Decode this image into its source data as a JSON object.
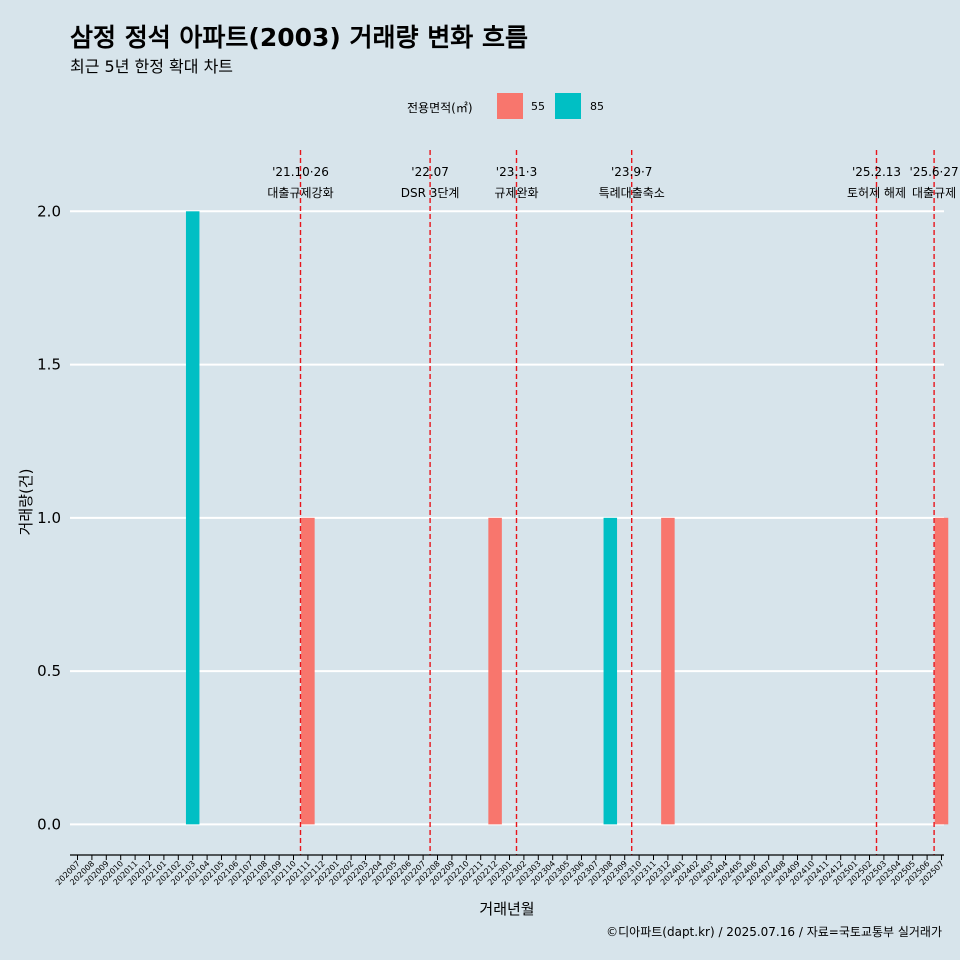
{
  "header": {
    "title": "삼정 정석 아파트(2003) 거래량 변화 흐름",
    "subtitle": "최근 5년 한정 확대 차트"
  },
  "legend": {
    "title": "전용면적(㎡)",
    "items": [
      {
        "label": "55",
        "color": "#f8766d"
      },
      {
        "label": "85",
        "color": "#00bfc4"
      }
    ]
  },
  "caption": "©디아파트(dapt.kr) / 2025.07.16 / 자료=국토교통부 실거래가",
  "chart_data": {
    "type": "bar",
    "title": "삼정 정석 아파트(2003) 거래량 변화 흐름",
    "subtitle": "최근 5년 한정 확대 차트",
    "xlabel": "거래년월",
    "ylabel": "거래량(건)",
    "ylim": [
      -0.1,
      2.2
    ],
    "yticks": [
      0.0,
      0.5,
      1.0,
      1.5,
      2.0
    ],
    "ytick_labels": [
      "0.0",
      "0.5",
      "1.0",
      "1.5",
      "2.0"
    ],
    "grid": "horizontal major lines",
    "legend_position": "top",
    "categories": [
      "202007",
      "202008",
      "202009",
      "202010",
      "202011",
      "202012",
      "202101",
      "202102",
      "202103",
      "202104",
      "202105",
      "202106",
      "202107",
      "202108",
      "202109",
      "202110",
      "202111",
      "202112",
      "202201",
      "202202",
      "202203",
      "202204",
      "202205",
      "202206",
      "202207",
      "202208",
      "202209",
      "202210",
      "202211",
      "202212",
      "202301",
      "202302",
      "202303",
      "202304",
      "202305",
      "202306",
      "202307",
      "202308",
      "202309",
      "202310",
      "202311",
      "202312",
      "202401",
      "202402",
      "202403",
      "202404",
      "202405",
      "202406",
      "202407",
      "202408",
      "202409",
      "202410",
      "202411",
      "202412",
      "202501",
      "202502",
      "202503",
      "202504",
      "202505",
      "202506",
      "202507"
    ],
    "series": [
      {
        "name": "55",
        "color": "#f8766d",
        "points": [
          {
            "x": "202111",
            "y": 1
          },
          {
            "x": "202212",
            "y": 1
          },
          {
            "x": "202312",
            "y": 1
          },
          {
            "x": "202507",
            "y": 1
          }
        ]
      },
      {
        "name": "85",
        "color": "#00bfc4",
        "points": [
          {
            "x": "202103",
            "y": 2
          },
          {
            "x": "202308",
            "y": 1
          }
        ]
      }
    ],
    "annotations": [
      {
        "date_label": "'21.10·26",
        "text": "대출규제강화",
        "x": "202110"
      },
      {
        "date_label": "'22.07",
        "text": "DSR 3단계",
        "x": "202207"
      },
      {
        "date_label": "'23.1·3",
        "text": "규제완화",
        "x": "202301"
      },
      {
        "date_label": "'23.9·7",
        "text": "특례대출축소",
        "x": "202309"
      },
      {
        "date_label": "'25.2.13",
        "text": "토허제 해제",
        "x": "202502"
      },
      {
        "date_label": "'25.6·27",
        "text": "대출규제",
        "x": "202506"
      }
    ]
  }
}
